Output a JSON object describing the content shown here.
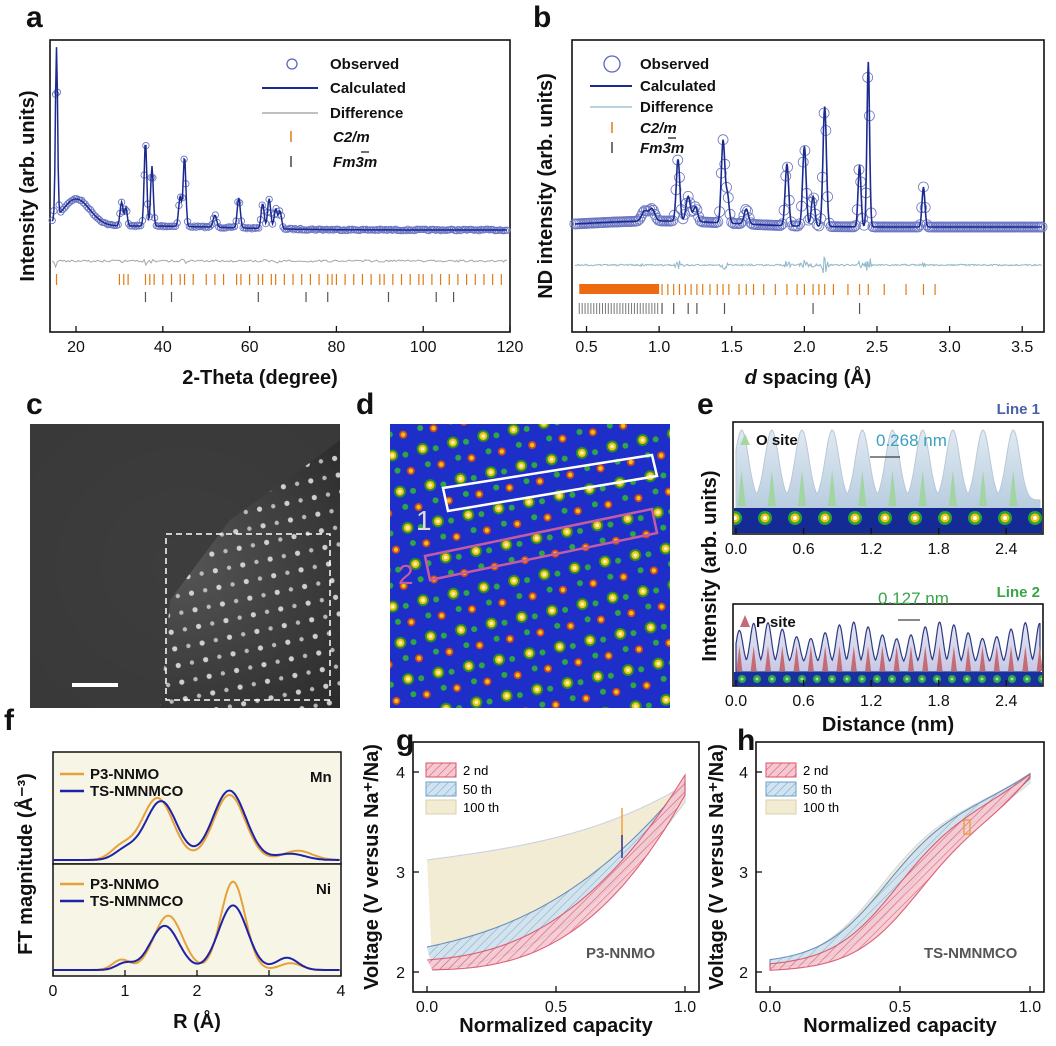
{
  "panels": {
    "a": "a",
    "b": "b",
    "c": "c",
    "d": "d",
    "e": "e",
    "f": "f",
    "g": "g",
    "h": "h"
  },
  "colors": {
    "navy": "#1b2a8f",
    "circle": "#5a66b8",
    "orange": "#e07a12",
    "gray": "#8a8a8a",
    "teal": "#8fb8c8",
    "pink": "#d9506a",
    "blue_fill": "#9cc3dd",
    "beige": "#efe6c6",
    "green": "#3aa548"
  },
  "panel_a": {
    "xlabel": "2-Theta (degree)",
    "ylabel": "Intensity (arb. units)",
    "xticks": [
      "20",
      "40",
      "60",
      "80",
      "100",
      "120"
    ],
    "legend": {
      "observed": "Observed",
      "calculated": "Calculated",
      "difference": "Difference",
      "phase1": "C2/m",
      "phase2": "Fm3m"
    }
  },
  "panel_b": {
    "xlabel": "d spacing (Å)",
    "ylabel": "ND intensity (arb. units)",
    "xticks": [
      "0.5",
      "1.0",
      "1.5",
      "2.0",
      "2.5",
      "3.0",
      "3.5"
    ],
    "legend": {
      "observed": "Observed",
      "calculated": "Calculated",
      "difference": "Difference",
      "phase1": "C2/m",
      "phase2": "Fm3m"
    }
  },
  "panel_d": {
    "line1": "1",
    "line2": "2"
  },
  "panel_e": {
    "line1": "Line 1",
    "line2": "Line 2",
    "o_site": "O site",
    "p_site": "P site",
    "spacing1": "0.268 nm",
    "spacing2": "0.127 nm",
    "xticks": [
      "0.0",
      "0.6",
      "1.2",
      "1.8",
      "2.4"
    ],
    "xlabel": "Distance (nm)",
    "ylabel": "Intensity (arb. units)"
  },
  "panel_f": {
    "ylabel": "FT magnitude (Å⁻³)",
    "xlabel": "R (Å)",
    "xticks": [
      "0",
      "1",
      "2",
      "3",
      "4"
    ],
    "top": {
      "element": "Mn",
      "s1": "P3-NNMO",
      "s2": "TS-NMNMCO"
    },
    "bottom": {
      "element": "Ni",
      "s1": "P3-NNMO",
      "s2": "TS-NMNMCO"
    }
  },
  "panel_g": {
    "xlabel": "Normalized capacity",
    "ylabel": "Voltage (V versus Na⁺/Na)",
    "sample": "P3-NNMO",
    "legend": [
      "2 nd",
      "50 th",
      "100 th"
    ],
    "xticks": [
      "0.0",
      "0.5",
      "1.0"
    ],
    "yticks": [
      "2",
      "3",
      "4"
    ]
  },
  "panel_h": {
    "xlabel": "Normalized capacity",
    "ylabel": "Voltage (V versus Na⁺/Na)",
    "sample": "TS-NMNMCO",
    "legend": [
      "2 nd",
      "50 th",
      "100 th"
    ],
    "xticks": [
      "0.0",
      "0.5",
      "1.0"
    ],
    "yticks": [
      "2",
      "3",
      "4"
    ]
  },
  "chart_data": [
    {
      "type": "line",
      "panel": "a",
      "xlabel": "2-Theta (degree)",
      "ylabel": "Intensity (arb. units)",
      "xlim": [
        14,
        120
      ],
      "series": [
        {
          "name": "Observed"
        },
        {
          "name": "Calculated"
        },
        {
          "name": "Difference"
        }
      ],
      "peaks_x": [
        15.5,
        20,
        30.5,
        31.5,
        36,
        37.5,
        44,
        45,
        52,
        57.5,
        63,
        64.5,
        66,
        67
      ]
    },
    {
      "type": "line",
      "panel": "b",
      "xlabel": "d spacing (Å)",
      "ylabel": "ND intensity (arb. units)",
      "xlim": [
        0.4,
        3.65
      ],
      "series": [
        {
          "name": "Observed"
        },
        {
          "name": "Calculated"
        },
        {
          "name": "Difference"
        }
      ],
      "peaks_x": [
        1.13,
        1.2,
        1.44,
        1.6,
        1.88,
        2.0,
        2.14,
        2.38,
        2.44,
        2.82
      ]
    },
    {
      "type": "line",
      "panel": "f",
      "xlabel": "R (Å)",
      "xlim": [
        0,
        4
      ],
      "series": [
        {
          "name": "P3-NNMO"
        },
        {
          "name": "TS-NMNMCO"
        }
      ]
    },
    {
      "type": "area",
      "panel": "g",
      "xlabel": "Normalized capacity",
      "ylabel": "Voltage (V versus Na⁺/Na)",
      "xlim": [
        0,
        1
      ],
      "ylim": [
        1.8,
        4.3
      ],
      "series": [
        {
          "name": "2 nd"
        },
        {
          "name": "50 th"
        },
        {
          "name": "100 th"
        }
      ]
    },
    {
      "type": "area",
      "panel": "h",
      "xlabel": "Normalized capacity",
      "ylabel": "Voltage (V versus Na⁺/Na)",
      "xlim": [
        0,
        1
      ],
      "ylim": [
        1.8,
        4.3
      ],
      "series": [
        {
          "name": "2 nd"
        },
        {
          "name": "50 th"
        },
        {
          "name": "100 th"
        }
      ]
    }
  ]
}
